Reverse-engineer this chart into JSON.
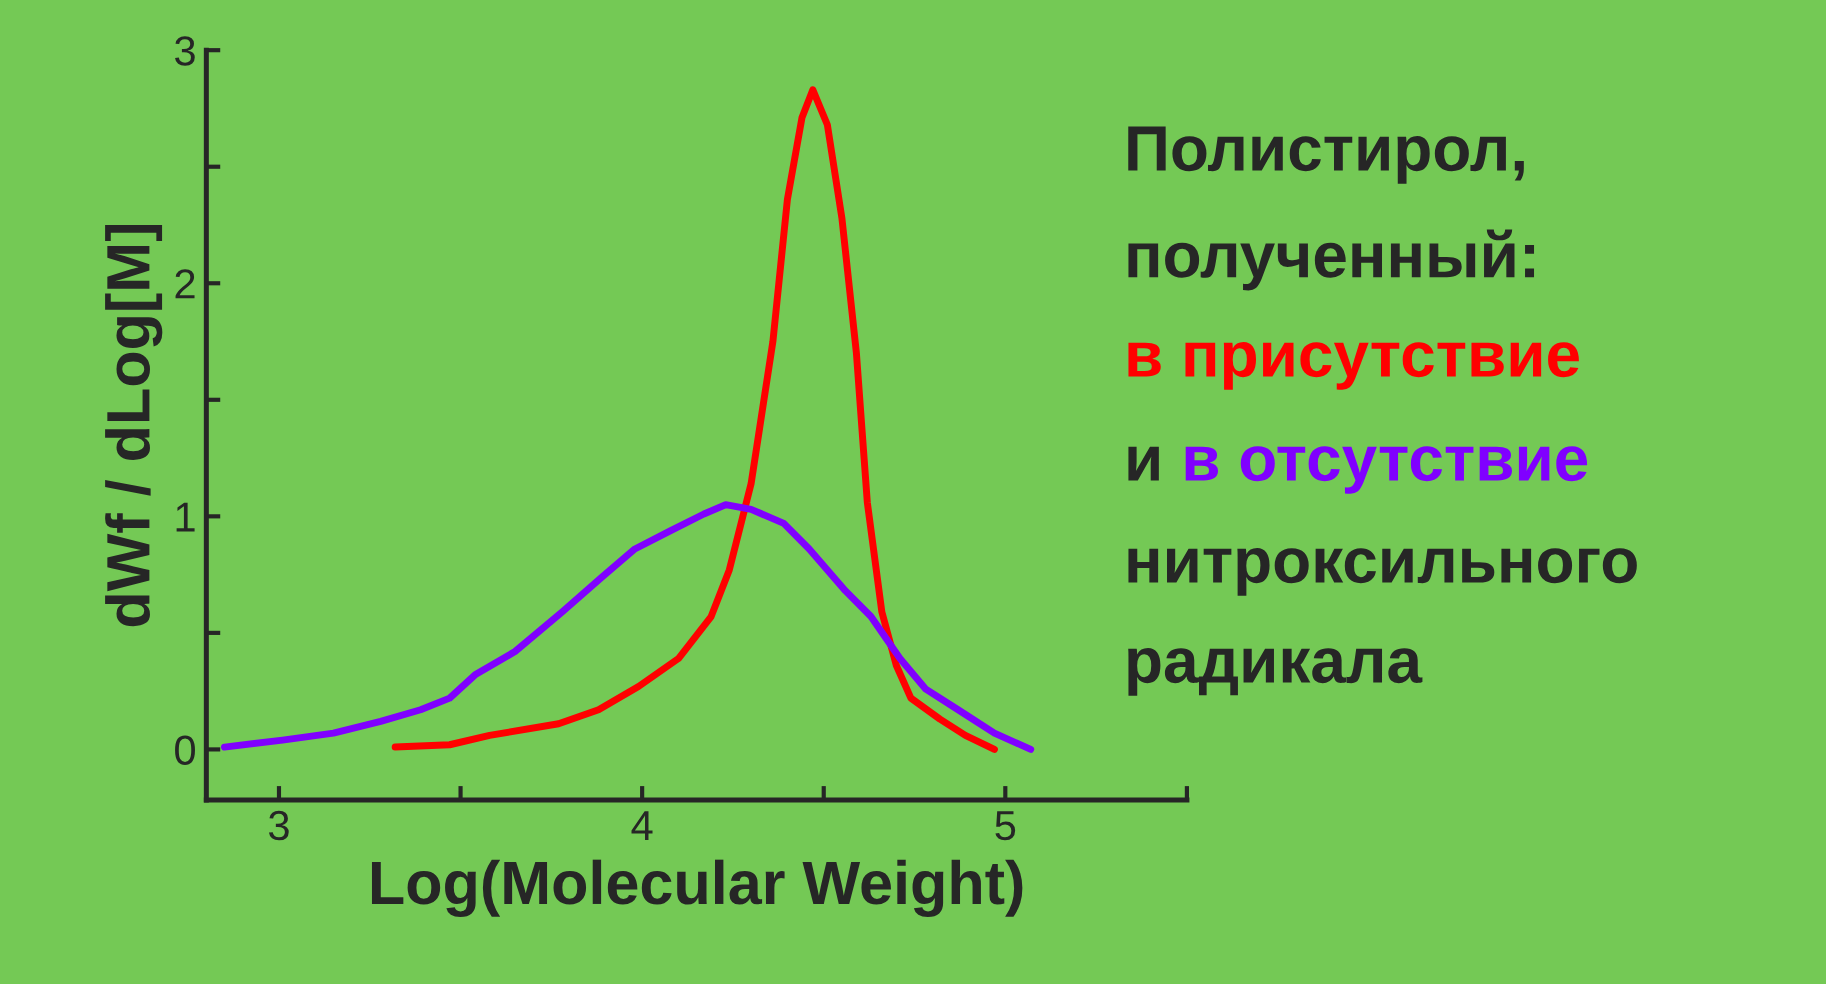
{
  "chart_data": {
    "type": "line",
    "xlabel": "Log(Molecular Weight)",
    "ylabel": "dWf / dLog[M]",
    "xlim": [
      2.8,
      5.5
    ],
    "xticks": [
      3,
      {
        "value": 3.5,
        "label": null
      },
      4,
      {
        "value": 4.5,
        "label": null
      },
      5,
      {
        "value": 5.5,
        "label": null
      }
    ],
    "ylim": [
      -0.217,
      3
    ],
    "yticks": [
      0,
      {
        "value": 0.5,
        "label": null
      },
      1,
      {
        "value": 1.5,
        "label": null
      },
      2,
      {
        "value": 2.5,
        "label": null
      },
      3
    ],
    "grid": false,
    "legend": false,
    "annotations": [
      "Полистирол,",
      "полученный:",
      "и",
      "нитроксильного",
      "радикала"
    ],
    "series": [
      {
        "name": "в присутствие",
        "color": "#ff0000",
        "x": [
          3.32,
          3.47,
          3.58,
          3.77,
          3.88,
          3.99,
          4.1,
          4.19,
          4.24,
          4.3,
          4.36,
          4.4,
          4.44,
          4.47,
          4.51,
          4.55,
          4.59,
          4.62,
          4.66,
          4.7,
          4.74,
          4.82,
          4.89,
          4.97
        ],
        "values": [
          0.01,
          0.02,
          0.06,
          0.11,
          0.17,
          0.27,
          0.39,
          0.57,
          0.77,
          1.14,
          1.75,
          2.36,
          2.71,
          2.83,
          2.68,
          2.28,
          1.7,
          1.06,
          0.59,
          0.36,
          0.22,
          0.13,
          0.06,
          0.0
        ]
      },
      {
        "name": "в отсутствие",
        "color": "#8000ff",
        "x": [
          2.85,
          3.01,
          3.15,
          3.28,
          3.39,
          3.47,
          3.54,
          3.65,
          3.78,
          3.89,
          3.98,
          4.08,
          4.17,
          4.23,
          4.3,
          4.39,
          4.46,
          4.56,
          4.63,
          4.71,
          4.78,
          4.87,
          4.97,
          5.07
        ],
        "values": [
          0.01,
          0.04,
          0.07,
          0.12,
          0.17,
          0.22,
          0.32,
          0.42,
          0.59,
          0.74,
          0.86,
          0.94,
          1.01,
          1.05,
          1.03,
          0.97,
          0.86,
          0.68,
          0.57,
          0.39,
          0.26,
          0.17,
          0.07,
          0.0
        ]
      }
    ]
  }
}
